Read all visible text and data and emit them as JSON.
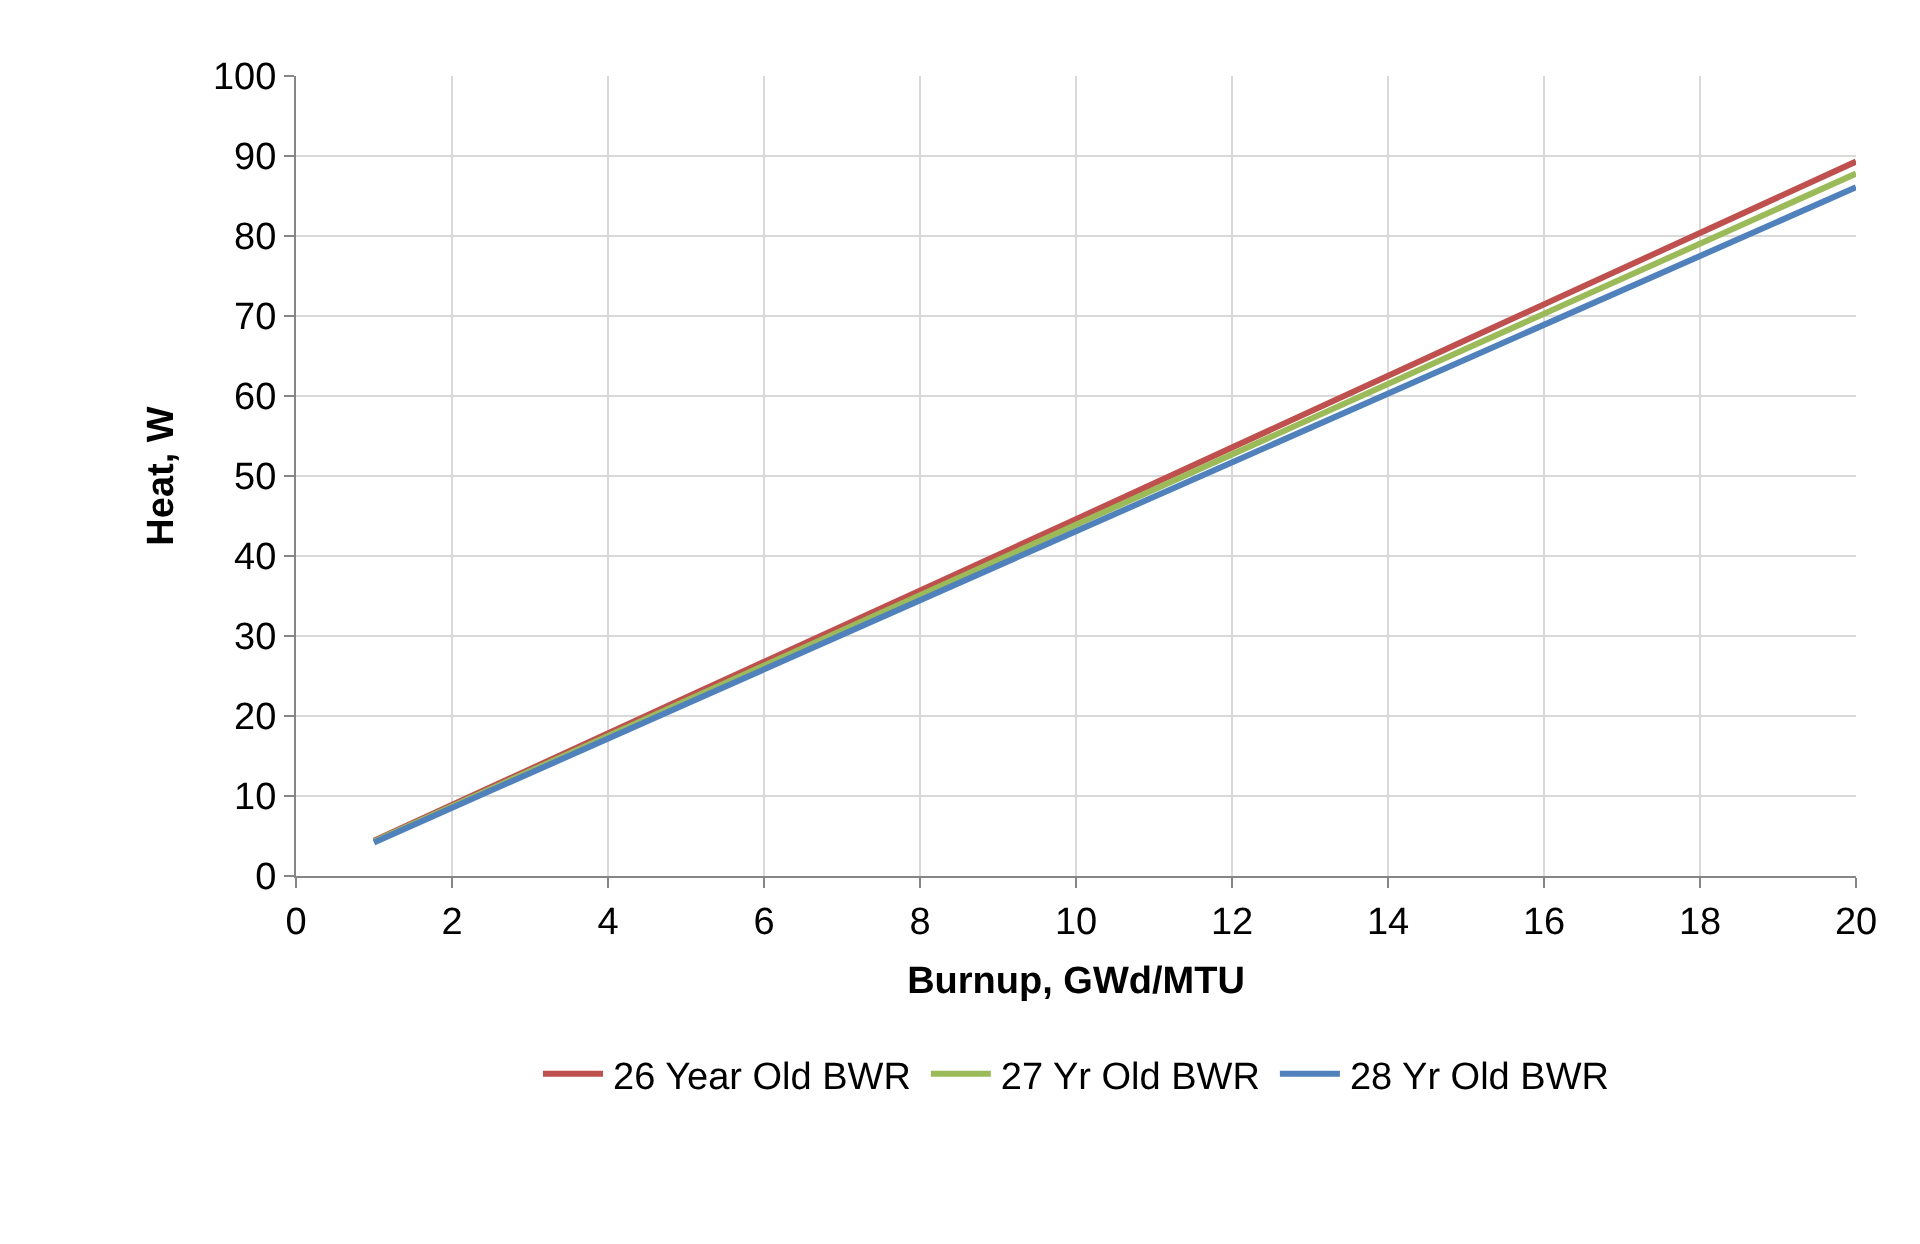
{
  "chart_data": {
    "type": "line",
    "xlabel": "Burnup, GWd/MTU",
    "ylabel": "Heat, W",
    "x": [
      1,
      5,
      10,
      15,
      20
    ],
    "series": [
      {
        "name": "26 Year Old BWR",
        "color": "#c0504d",
        "values": [
          4.4,
          22.3,
          44.6,
          67.0,
          89.3
        ]
      },
      {
        "name": "27 Yr Old BWR",
        "color": "#9bbb59",
        "values": [
          4.3,
          21.9,
          43.9,
          65.9,
          87.8
        ]
      },
      {
        "name": "28 Yr Old BWR",
        "color": "#4f81bd",
        "values": [
          4.2,
          21.5,
          43.1,
          64.6,
          86.1
        ]
      }
    ],
    "xlim": [
      0,
      20
    ],
    "xticks": [
      0,
      2,
      4,
      6,
      8,
      10,
      12,
      14,
      16,
      18,
      20
    ],
    "ylim": [
      0,
      100
    ],
    "yticks": [
      0,
      10,
      20,
      30,
      40,
      50,
      60,
      70,
      80,
      90,
      100
    ],
    "grid": true,
    "legend": "bottom",
    "marker": "none",
    "line_style": "solid"
  }
}
